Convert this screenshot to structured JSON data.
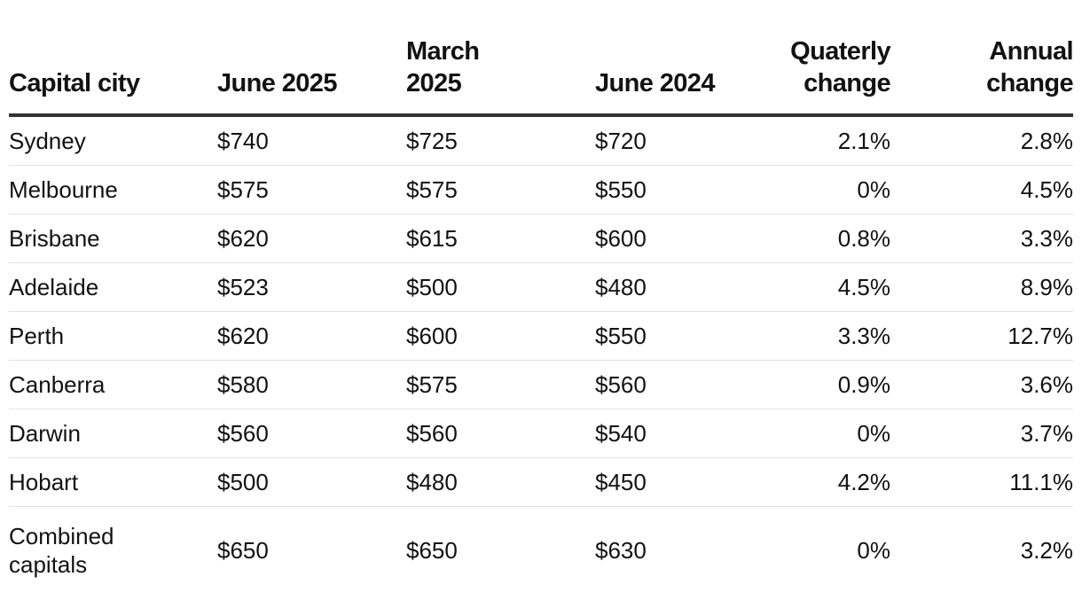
{
  "table": {
    "headers": [
      "Capital city",
      "June 2025",
      "March 2025",
      "June 2024",
      "Quaterly change",
      "Annual change"
    ],
    "rows": [
      [
        "Sydney",
        "$740",
        "$725",
        "$720",
        "2.1%",
        "2.8%"
      ],
      [
        "Melbourne",
        "$575",
        "$575",
        "$550",
        "0%",
        "4.5%"
      ],
      [
        "Brisbane",
        "$620",
        "$615",
        "$600",
        "0.8%",
        "3.3%"
      ],
      [
        "Adelaide",
        "$523",
        "$500",
        "$480",
        "4.5%",
        "8.9%"
      ],
      [
        "Perth",
        "$620",
        "$600",
        "$550",
        "3.3%",
        "12.7%"
      ],
      [
        "Canberra",
        "$580",
        "$575",
        "$560",
        "0.9%",
        "3.6%"
      ],
      [
        "Darwin",
        "$560",
        "$560",
        "$540",
        "0%",
        "3.7%"
      ],
      [
        "Hobart",
        "$500",
        "$480",
        "$450",
        "4.2%",
        "11.1%"
      ],
      [
        "Combined capitals",
        "$650",
        "$650",
        "$630",
        "0%",
        "3.2%"
      ]
    ]
  },
  "colors": {
    "text": "#121212",
    "header_rule": "#333333",
    "row_rule": "#e2e2e2"
  }
}
